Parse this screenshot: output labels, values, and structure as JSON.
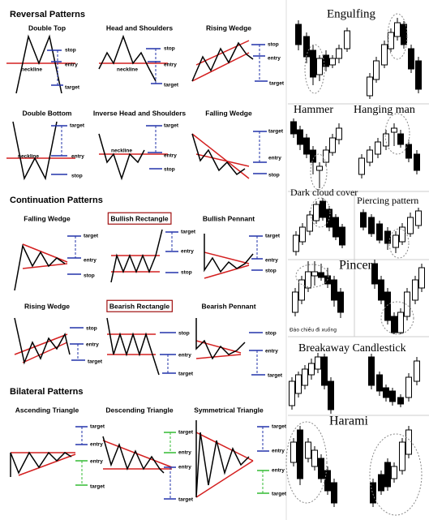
{
  "left_panel": {
    "sections": [
      {
        "title": "Reversal Patterns",
        "patterns": [
          {
            "name": "Double Top",
            "labels": [
              "stop",
              "entry",
              "neckline",
              "target"
            ]
          },
          {
            "name": "Head and Shoulders",
            "labels": [
              "stop",
              "entry",
              "neckline",
              "target"
            ]
          },
          {
            "name": "Rising Wedge",
            "labels": [
              "stop",
              "entry",
              "target"
            ]
          },
          {
            "name": "Double Bottom",
            "labels": [
              "target",
              "neckline",
              "entry",
              "stop"
            ]
          },
          {
            "name": "Inverse Head and Shoulders",
            "labels": [
              "target",
              "neckline",
              "entry",
              "stop"
            ]
          },
          {
            "name": "Falling Wedge",
            "labels": [
              "target",
              "entry",
              "stop"
            ]
          }
        ]
      },
      {
        "title": "Continuation Patterns",
        "patterns": [
          {
            "name": "Falling Wedge",
            "labels": [
              "target",
              "entry",
              "stop"
            ]
          },
          {
            "name": "Bullish Rectangle",
            "labels": [
              "target",
              "entry",
              "stop"
            ]
          },
          {
            "name": "Bullish Pennant",
            "labels": [
              "target",
              "entry",
              "stop"
            ]
          },
          {
            "name": "Rising Wedge",
            "labels": [
              "stop",
              "entry",
              "target"
            ]
          },
          {
            "name": "Bearish Rectangle",
            "labels": [
              "stop",
              "entry",
              "target"
            ]
          },
          {
            "name": "Bearish Pennant",
            "labels": [
              "stop",
              "entry",
              "target"
            ]
          }
        ]
      },
      {
        "title": "Bilateral Patterns",
        "patterns": [
          {
            "name": "Ascending Triangle",
            "labels": [
              "target",
              "entry",
              "entry",
              "target"
            ]
          },
          {
            "name": "Descending Triangle",
            "labels": [
              "target",
              "entry",
              "entry",
              "target"
            ]
          },
          {
            "name": "Symmetrical Triangle",
            "labels": [
              "target",
              "entry",
              "entry",
              "target"
            ]
          }
        ]
      }
    ]
  },
  "right_panel": {
    "titles": [
      "Engulfing",
      "Hammer",
      "Hanging man",
      "Dark cloud cover",
      "Piercing pattern",
      "Pincer",
      "Breakaway Candlestick",
      "Harami"
    ],
    "note": "Đảo chiều đi xuống"
  }
}
